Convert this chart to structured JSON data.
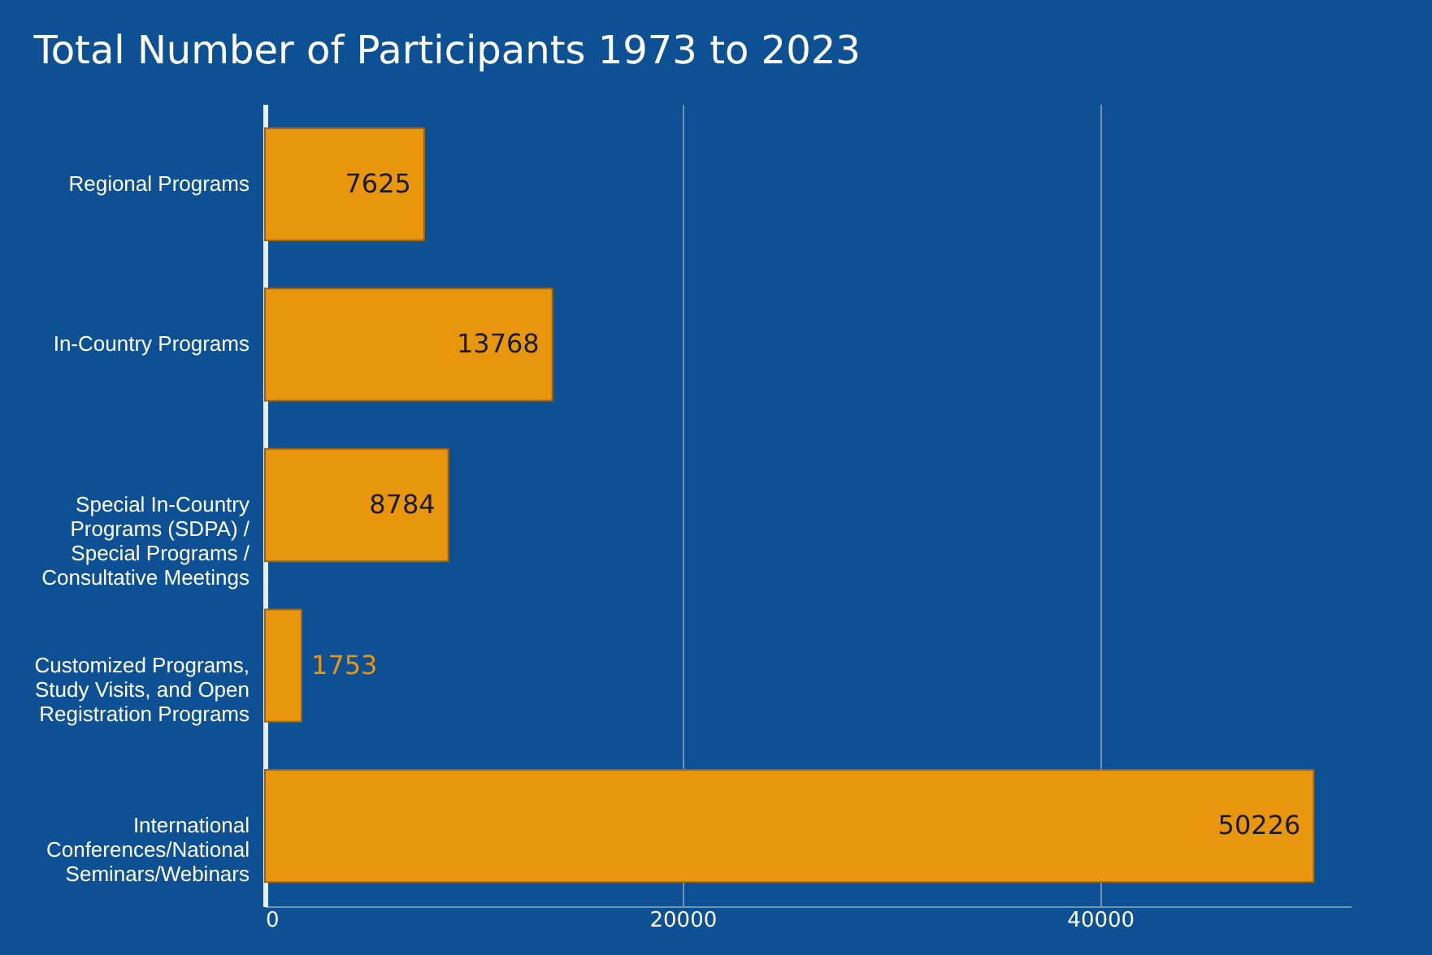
{
  "chart_data": {
    "type": "bar",
    "orientation": "horizontal",
    "title": "Total Number of Participants 1973 to 2023",
    "categories": [
      "Regional Programs",
      "In-Country Programs",
      "Special In-Country Programs (SDPA) / Special Programs / Consultative Meetings",
      "Customized Programs, Study Visits, and Open Registration Programs",
      "International Conferences/National Seminars/Webinars"
    ],
    "values": [
      7625,
      13768,
      8784,
      1753,
      50226
    ],
    "color": "#e8960e",
    "xlim": [
      0,
      52000
    ],
    "xticks": [
      0,
      20000,
      40000
    ],
    "grid": "x",
    "data_labels": true
  }
}
